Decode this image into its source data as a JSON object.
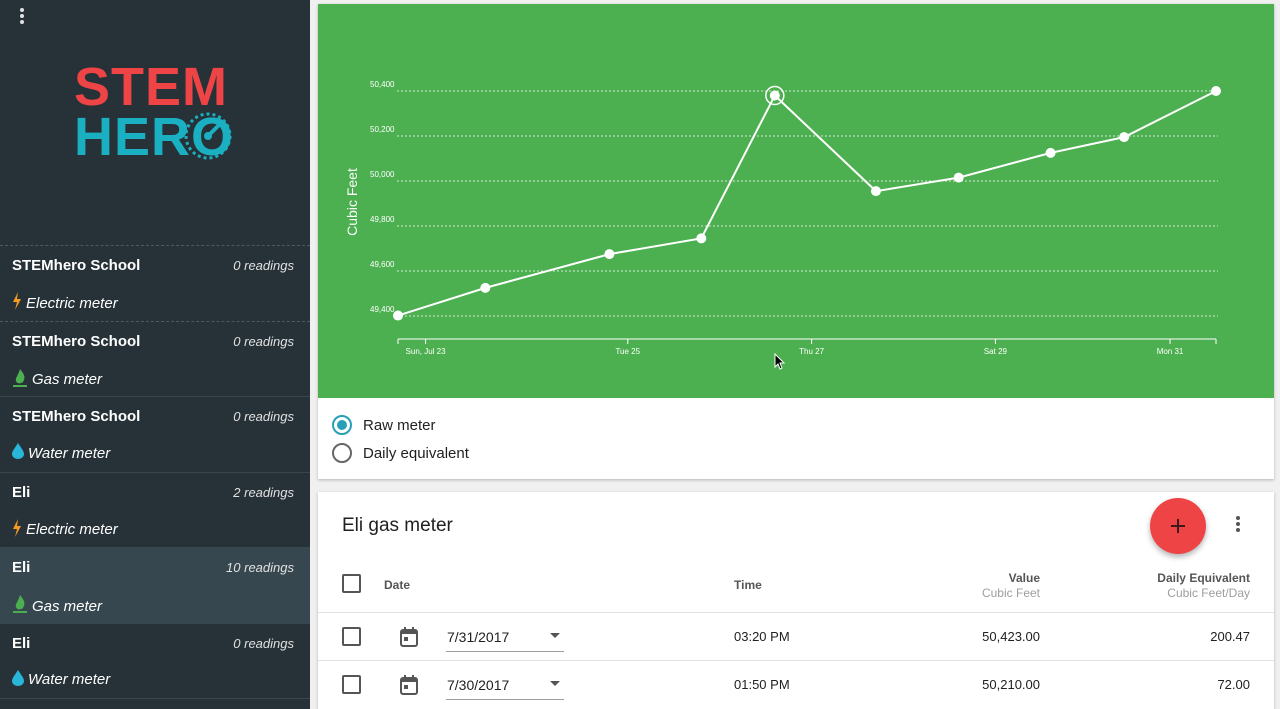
{
  "sidebar": {
    "logo": {
      "line1": "STEM",
      "line2": "HERO",
      "line1_color": "#ef4446",
      "line2_color": "#1ab0c2"
    },
    "items": [
      {
        "name": "STEMhero School",
        "readings": "0 readings",
        "type": "Electric meter",
        "icon": "lightning-icon"
      },
      {
        "name": "STEMhero School",
        "readings": "0 readings",
        "type": "Gas meter",
        "icon": "flame-icon"
      },
      {
        "name": "STEMhero School",
        "readings": "0 readings",
        "type": "Water meter",
        "icon": "water-drop-icon"
      },
      {
        "name": "Eli",
        "readings": "2 readings",
        "type": "Electric meter",
        "icon": "lightning-icon"
      },
      {
        "name": "Eli",
        "readings": "10 readings",
        "type": "Gas meter",
        "icon": "flame-icon",
        "selected": true
      },
      {
        "name": "Eli",
        "readings": "0 readings",
        "type": "Water meter",
        "icon": "water-drop-icon"
      }
    ]
  },
  "chart_data": {
    "type": "line",
    "ylabel": "Cubic Feet",
    "xlabel": "",
    "background": "#4caf50",
    "grid": true,
    "ylim": [
      49400,
      50400
    ],
    "yticks": [
      {
        "value": 49400,
        "label": "49,400"
      },
      {
        "value": 49600,
        "label": "49,600"
      },
      {
        "value": 49800,
        "label": "49,800"
      },
      {
        "value": 50000,
        "label": "50,000"
      },
      {
        "value": 50200,
        "label": "50,200"
      },
      {
        "value": 50400,
        "label": "50,400"
      }
    ],
    "xlim": [
      0,
      8.9
    ],
    "xticks": [
      {
        "value": 0.3,
        "label": "Sun, Jul 23"
      },
      {
        "value": 2.5,
        "label": "Tue 25"
      },
      {
        "value": 4.5,
        "label": "Thu 27"
      },
      {
        "value": 6.5,
        "label": "Sat 29"
      },
      {
        "value": 8.4,
        "label": "Mon 31"
      }
    ],
    "series": [
      {
        "values": [
          {
            "x": 0,
            "y": 49402
          },
          {
            "x": 0.95,
            "y": 49525
          },
          {
            "x": 2.3,
            "y": 49675
          },
          {
            "x": 3.3,
            "y": 49745
          },
          {
            "x": 4.1,
            "y": 50380,
            "highlighted": true
          },
          {
            "x": 5.2,
            "y": 49955
          },
          {
            "x": 6.1,
            "y": 50015
          },
          {
            "x": 7.1,
            "y": 50125
          },
          {
            "x": 7.9,
            "y": 50195
          },
          {
            "x": 8.9,
            "y": 50400
          }
        ]
      }
    ]
  },
  "chart_options": {
    "raw_label": "Raw meter",
    "daily_label": "Daily equivalent",
    "selected": "raw"
  },
  "table": {
    "title": "Eli gas meter",
    "headers": {
      "date": "Date",
      "time": "Time",
      "value": "Value",
      "value_unit": "Cubic Feet",
      "daily": "Daily Equivalent",
      "daily_unit": "Cubic Feet/Day"
    },
    "rows": [
      {
        "date": "7/31/2017",
        "time": "03:20 PM",
        "value": "50,423.00",
        "daily": "200.47"
      },
      {
        "date": "7/30/2017",
        "time": "01:50 PM",
        "value": "50,210.00",
        "daily": "72.00"
      }
    ],
    "fab_color": "#ef4446"
  }
}
